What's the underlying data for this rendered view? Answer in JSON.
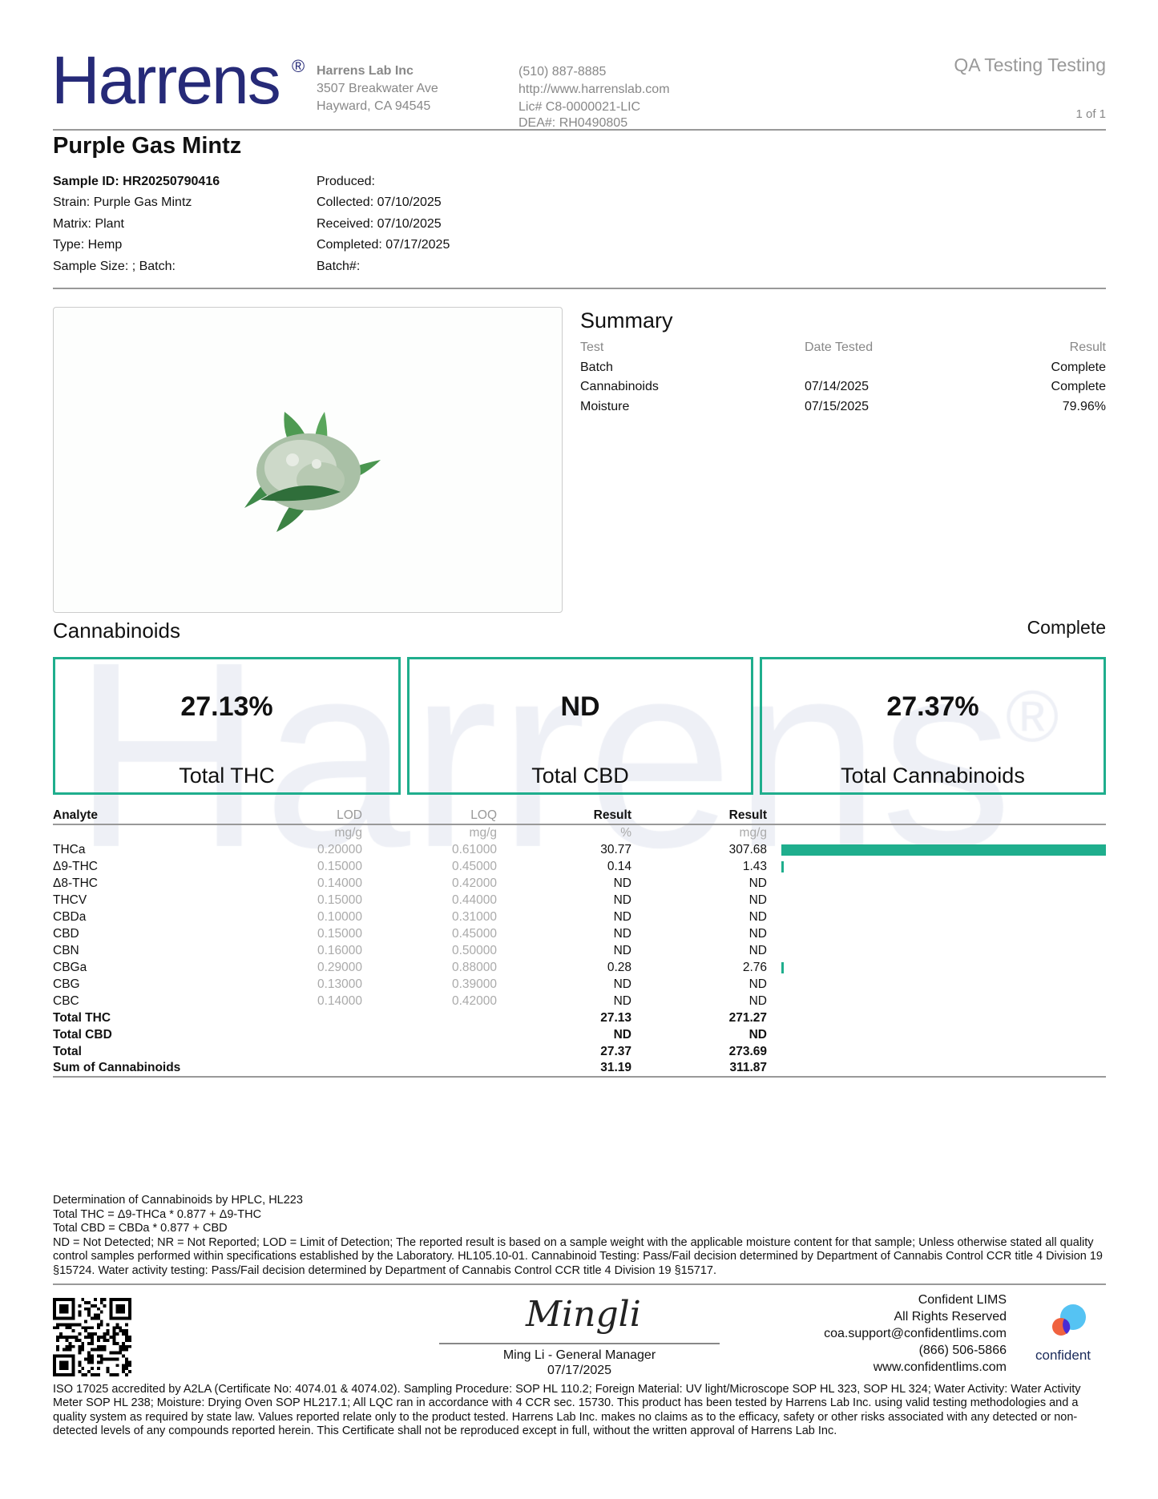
{
  "header": {
    "logo_text": "Harrens",
    "logo_mark": "®",
    "lab_name": "Harrens Lab Inc",
    "address1": "3507 Breakwater Ave",
    "address2": "Hayward, CA 94545",
    "phone": "(510) 887-8885",
    "website": "http://www.harrenslab.com",
    "license": "Lic# C8-0000021-LIC",
    "dea": "DEA#: RH0490805",
    "client": "QA Testing Testing",
    "page": "1 of 1"
  },
  "sample": {
    "title": "Purple Gas Mintz",
    "left": [
      "Sample ID: HR20250790416",
      "Strain: Purple Gas Mintz",
      "Matrix: Plant",
      "Type: Hemp",
      "Sample Size: ; Batch:"
    ],
    "right": [
      "Produced:",
      "Collected: 07/10/2025",
      "Received: 07/10/2025",
      "Completed: 07/17/2025",
      "Batch#:"
    ]
  },
  "summary": {
    "title": "Summary",
    "headers": [
      "Test",
      "Date Tested",
      "Result"
    ],
    "rows": [
      [
        "Batch",
        "",
        "Complete"
      ],
      [
        "Cannabinoids",
        "07/14/2025",
        "Complete"
      ],
      [
        "Moisture",
        "07/15/2025",
        "79.96%"
      ]
    ]
  },
  "cannabinoids": {
    "title": "Cannabinoids",
    "status": "Complete",
    "cards": [
      {
        "value": "27.13%",
        "label": "Total THC"
      },
      {
        "value": "ND",
        "label": "Total CBD"
      },
      {
        "value": "27.37%",
        "label": "Total Cannabinoids"
      }
    ],
    "headers": [
      "Analyte",
      "LOD",
      "LOQ",
      "Result",
      "Result"
    ],
    "units": [
      "",
      "mg/g",
      "mg/g",
      "%",
      "mg/g"
    ],
    "bar_color": "#1fae8d",
    "rows": [
      {
        "analyte": "THCa",
        "lod": "0.20000",
        "loq": "0.61000",
        "pct": "30.77",
        "mgg": "307.68",
        "bar": 307.68
      },
      {
        "analyte": "Δ9-THC",
        "lod": "0.15000",
        "loq": "0.45000",
        "pct": "0.14",
        "mgg": "1.43",
        "bar": 1.43
      },
      {
        "analyte": "Δ8-THC",
        "lod": "0.14000",
        "loq": "0.42000",
        "pct": "ND",
        "mgg": "ND",
        "bar": 0
      },
      {
        "analyte": "THCV",
        "lod": "0.15000",
        "loq": "0.44000",
        "pct": "ND",
        "mgg": "ND",
        "bar": 0
      },
      {
        "analyte": "CBDa",
        "lod": "0.10000",
        "loq": "0.31000",
        "pct": "ND",
        "mgg": "ND",
        "bar": 0
      },
      {
        "analyte": "CBD",
        "lod": "0.15000",
        "loq": "0.45000",
        "pct": "ND",
        "mgg": "ND",
        "bar": 0
      },
      {
        "analyte": "CBN",
        "lod": "0.16000",
        "loq": "0.50000",
        "pct": "ND",
        "mgg": "ND",
        "bar": 0
      },
      {
        "analyte": "CBGa",
        "lod": "0.29000",
        "loq": "0.88000",
        "pct": "0.28",
        "mgg": "2.76",
        "bar": 2.76
      },
      {
        "analyte": "CBG",
        "lod": "0.13000",
        "loq": "0.39000",
        "pct": "ND",
        "mgg": "ND",
        "bar": 0
      },
      {
        "analyte": "CBC",
        "lod": "0.14000",
        "loq": "0.42000",
        "pct": "ND",
        "mgg": "ND",
        "bar": 0
      }
    ],
    "totals": [
      {
        "analyte": "Total THC",
        "pct": "27.13",
        "mgg": "271.27"
      },
      {
        "analyte": "Total CBD",
        "pct": "ND",
        "mgg": "ND"
      },
      {
        "analyte": "Total",
        "pct": "27.37",
        "mgg": "273.69"
      },
      {
        "analyte": "Sum of Cannabinoids",
        "pct": "31.19",
        "mgg": "311.87"
      }
    ]
  },
  "notes": [
    "Determination of Cannabinoids by HPLC, HL223",
    "Total THC = Δ9-THCa * 0.877 + Δ9-THC",
    "Total CBD = CBDa * 0.877 + CBD",
    "ND = Not Detected; NR = Not Reported; LOD = Limit of Detection; The reported result is based on a sample weight with the applicable moisture content for that sample; Unless otherwise stated all quality control samples performed within specifications established by the Laboratory. HL105.10-01. Cannabinoid Testing: Pass/Fail decision determined by Department of Cannabis Control CCR title 4 Division 19 §15724. Water activity testing: Pass/Fail decision determined by Department of Cannabis Control CCR title 4 Division 19 §15717."
  ],
  "signature": {
    "signature_text": "Mingli",
    "name": "Ming Li - General Manager",
    "date": "07/17/2025"
  },
  "confident": {
    "lines": [
      "Confident LIMS",
      "All Rights Reserved",
      "coa.support@confidentlims.com",
      "(866) 506-5866",
      "www.confidentlims.com"
    ],
    "logo_text": "confident"
  },
  "disclaimer": "ISO 17025 accredited by A2LA (Certificate No: 4074.01 & 4074.02). Sampling Procedure: SOP HL 110.2; Foreign Material: UV light/Microscope SOP HL 323, SOP HL 324; Water Activity: Water Activity Meter SOP HL 238; Moisture: Drying Oven SOP HL217.1; All LQC ran in accordance with 4 CCR sec. 15730. This product has been tested by Harrens Lab Inc. using valid testing methodologies and a quality system as required by state law. Values reported relate only to the product tested. Harrens Lab Inc. makes no claims as to the efficacy, safety or other risks associated with any detected or non-detected levels of any compounds reported herein. This Certificate shall not be reproduced except in full, without the written approval of Harrens Lab Inc."
}
